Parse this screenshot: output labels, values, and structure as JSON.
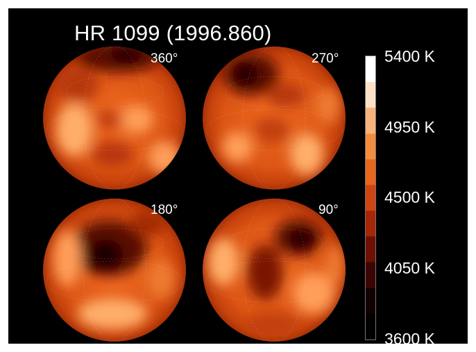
{
  "figure": {
    "title": "HR 1099 (1996.860)",
    "background": "#000000"
  },
  "maps": [
    {
      "rotation_label": "360°",
      "spot_color": "#1a0200"
    },
    {
      "rotation_label": "270°",
      "spot_color": "#1a0200"
    },
    {
      "rotation_label": "180°",
      "spot_color": "#1a0200"
    },
    {
      "rotation_label": "90°",
      "spot_color": "#1a0200"
    }
  ],
  "colorbar": {
    "labels": [
      "5400 K",
      "4950 K",
      "4500 K",
      "4050 K",
      "3600 K"
    ],
    "colors": [
      "#ffffff",
      "#fde2c8",
      "#f8b37a",
      "#f28c3e",
      "#e8661c",
      "#cf4410",
      "#a62608",
      "#6e1004",
      "#3a0502",
      "#120100",
      "#000000"
    ]
  }
}
